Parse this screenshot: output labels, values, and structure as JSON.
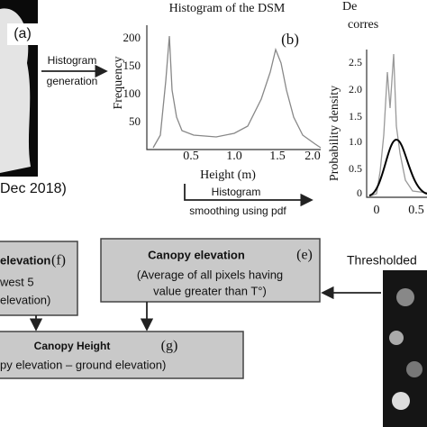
{
  "panel_a": {
    "label": "(a)",
    "caption": "Dec 2018)"
  },
  "step_histogram": {
    "lines": [
      "Histogram",
      "generation"
    ]
  },
  "panel_b": {
    "title": "Histogram of the DSM",
    "label": "(b)",
    "y_label": "Frequency",
    "x_label": "Height (m)",
    "yticks": [
      "50",
      "100",
      "150",
      "200"
    ],
    "xticks": [
      "0.5",
      "1.0",
      "1.5",
      "2.0"
    ]
  },
  "step_smoothing": {
    "lines": [
      "Histogram",
      "smoothing using pdf"
    ]
  },
  "panel_c": {
    "title_lines": [
      "De",
      "corres"
    ],
    "y_label": "Probability density",
    "yticks": [
      "0",
      "0.5",
      "1.0",
      "1.5",
      "2.0",
      "2.5"
    ],
    "xticks": [
      "0",
      "0.5"
    ]
  },
  "box_f": {
    "title": "elevation",
    "label": "(f)",
    "lines": [
      "west 5",
      "elevation)"
    ]
  },
  "box_e": {
    "title": "Canopy elevation",
    "label": "(e)",
    "lines": [
      "(Average of all pixels having",
      "value greater than T°)"
    ]
  },
  "box_g": {
    "title": "Canopy Height",
    "label": "(g)",
    "lines": [
      "py elevation – ground elevation)"
    ]
  },
  "panel_d": {
    "title": "Thresholded"
  }
}
